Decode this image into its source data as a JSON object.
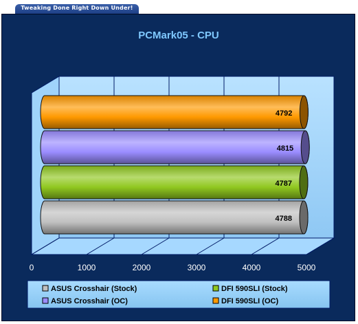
{
  "banner": {
    "text": "Tweaking Done Right Down Under!"
  },
  "chart_data": {
    "type": "bar",
    "orientation": "horizontal",
    "title": "PCMark05 - CPU",
    "xlim": [
      0,
      5000
    ],
    "ticks": [
      0,
      1000,
      2000,
      3000,
      4000,
      5000
    ],
    "grid": true,
    "legend_position": "bottom",
    "series": [
      {
        "name": "ASUS Crosshair (Stock)",
        "value": 4788,
        "color": "#c0c0c0"
      },
      {
        "name": "DFI 590SLI (Stock)",
        "value": 4787,
        "color": "#90c820"
      },
      {
        "name": "ASUS Crosshair (OC)",
        "value": 4815,
        "color": "#9a8cff"
      },
      {
        "name": "DFI 590SLI (OC)",
        "value": 4792,
        "color": "#ff9900"
      }
    ],
    "bar_order_bottom_to_top": [
      0,
      1,
      2,
      3
    ]
  }
}
